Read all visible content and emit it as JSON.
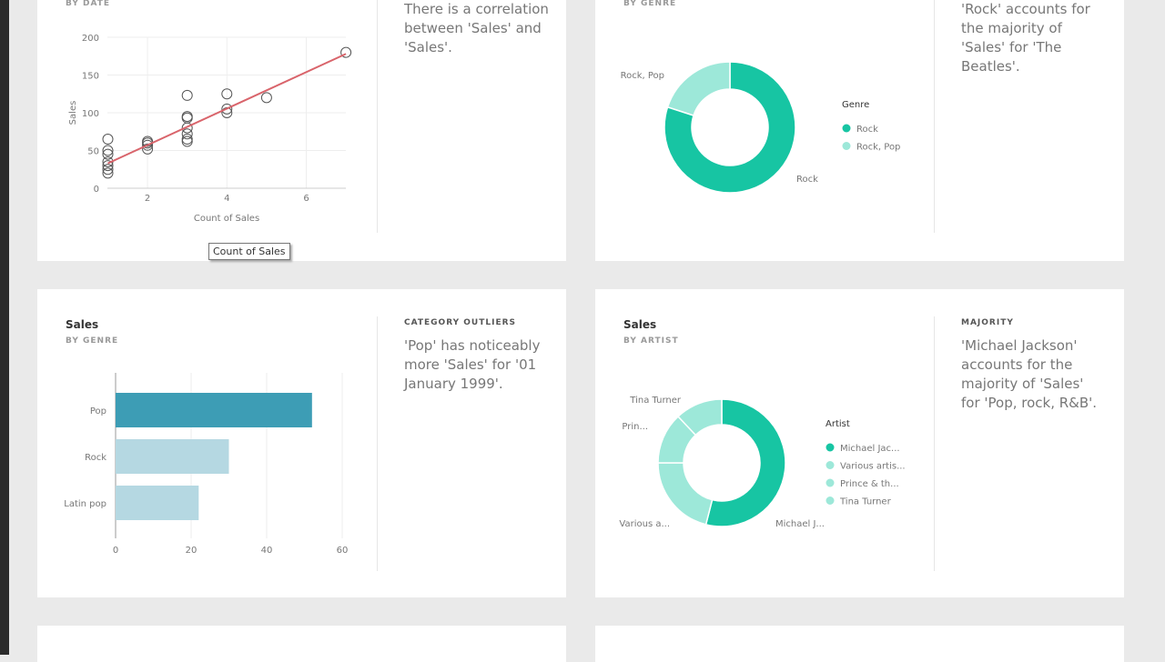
{
  "cards": [
    {
      "subtitle": "BY DATE",
      "insight": "There is a correlation between 'Sales' and 'Sales'."
    },
    {
      "subtitle": "BY GENRE",
      "insight": "'Rock' accounts for the majority of 'Sales' for 'The Beatles'."
    },
    {
      "title": "Sales",
      "subtitle": "BY GENRE",
      "insight_heading": "CATEGORY OUTLIERS",
      "insight": "'Pop' has noticeably more 'Sales' for '01 January 1999'."
    },
    {
      "title": "Sales",
      "subtitle": "BY ARTIST",
      "insight_heading": "MAJORITY",
      "insight": "'Michael Jackson' accounts for the majority of 'Sales' for 'Pop, rock, R&B'."
    }
  ],
  "tooltip": "Count of Sales",
  "chart_data": [
    {
      "type": "scatter",
      "xlabel": "Count of Sales",
      "ylabel": "Sales",
      "xlim": [
        1,
        7
      ],
      "ylim": [
        0,
        200
      ],
      "xticks": [
        2,
        4,
        6
      ],
      "yticks": [
        0,
        50,
        100,
        150,
        200
      ],
      "grid": true,
      "points": [
        [
          1,
          20
        ],
        [
          1,
          25
        ],
        [
          1,
          30
        ],
        [
          1,
          35
        ],
        [
          1,
          45
        ],
        [
          1,
          50
        ],
        [
          1,
          65
        ],
        [
          2,
          52
        ],
        [
          2,
          57
        ],
        [
          2,
          60
        ],
        [
          2,
          62
        ],
        [
          3,
          62
        ],
        [
          3,
          65
        ],
        [
          3,
          72
        ],
        [
          3,
          80
        ],
        [
          3,
          93
        ],
        [
          3,
          95
        ],
        [
          3,
          123
        ],
        [
          4,
          100
        ],
        [
          4,
          105
        ],
        [
          4,
          125
        ],
        [
          5,
          120
        ],
        [
          7,
          180
        ]
      ],
      "trendline": [
        [
          1,
          33
        ],
        [
          7,
          178
        ]
      ],
      "trendline_color": "#d9646b"
    },
    {
      "type": "pie",
      "legend_title": "Genre",
      "legend_placement": "right",
      "labels": [
        "Rock",
        "Rock, Pop"
      ],
      "values": [
        80,
        20
      ],
      "colors": [
        "#17c5a3",
        "#9de8d9"
      ]
    },
    {
      "type": "bar",
      "orientation": "horizontal",
      "categories": [
        "Pop",
        "Rock",
        "Latin pop"
      ],
      "values": [
        52,
        30,
        22
      ],
      "xlim": [
        0,
        60
      ],
      "xticks": [
        0,
        20,
        40,
        60
      ],
      "colors": [
        "#3d9db5",
        "#b5d8e2",
        "#b5d8e2"
      ]
    },
    {
      "type": "pie",
      "legend_title": "Artist",
      "legend_placement": "right",
      "labels": [
        "Michael Jac...",
        "Various artis...",
        "Prince & th...",
        "Tina Turner"
      ],
      "slice_labels": [
        "Michael J...",
        "Various a...",
        "Prin...",
        "Tina Turner"
      ],
      "values": [
        54,
        21,
        13,
        12
      ],
      "colors": [
        "#17c5a3",
        "#9de8d9",
        "#9de8d9",
        "#9de8d9"
      ]
    }
  ]
}
